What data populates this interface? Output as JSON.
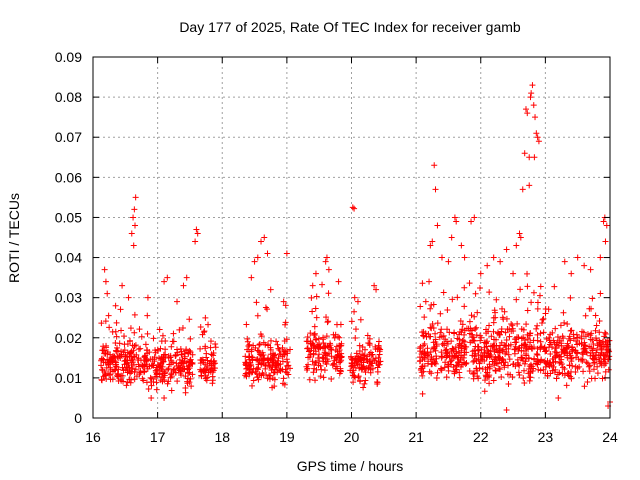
{
  "chart_data": {
    "type": "scatter",
    "title": "Day 177 of 2025, Rate Of TEC Index for receiver gamb",
    "xlabel": "GPS time / hours",
    "ylabel": "ROTI / TECUs",
    "xlim": [
      16,
      24
    ],
    "ylim": [
      0,
      0.09
    ],
    "x_ticks": [
      16,
      17,
      18,
      19,
      20,
      21,
      22,
      23,
      24
    ],
    "x_tick_labels": [
      "16",
      "17",
      "18",
      "19",
      "20",
      "21",
      "22",
      "23",
      "24"
    ],
    "y_ticks": [
      0,
      0.01,
      0.02,
      0.03,
      0.04,
      0.05,
      0.06,
      0.07,
      0.08,
      0.09
    ],
    "y_tick_labels": [
      "0",
      "0.01",
      "0.02",
      "0.03",
      "0.04",
      "0.05",
      "0.06",
      "0.07",
      "0.08",
      "0.09"
    ],
    "grid": true,
    "marker": "plus",
    "series": [
      {
        "name": "ROTI",
        "color": "#ff0000",
        "segments": [
          {
            "start": 16.12,
            "end": 17.55,
            "base": 0.013,
            "spread": 0.008
          },
          {
            "start": 17.65,
            "end": 17.9,
            "base": 0.013,
            "spread": 0.007
          },
          {
            "start": 18.35,
            "end": 19.05,
            "base": 0.014,
            "spread": 0.008
          },
          {
            "start": 19.3,
            "end": 19.85,
            "base": 0.016,
            "spread": 0.009
          },
          {
            "start": 19.98,
            "end": 20.45,
            "base": 0.014,
            "spread": 0.008
          },
          {
            "start": 21.05,
            "end": 24.0,
            "base": 0.016,
            "spread": 0.01
          }
        ],
        "points": [
          [
            16.18,
            0.037
          ],
          [
            16.2,
            0.034
          ],
          [
            16.22,
            0.031
          ],
          [
            16.35,
            0.028
          ],
          [
            16.45,
            0.033
          ],
          [
            16.55,
            0.03
          ],
          [
            16.6,
            0.046
          ],
          [
            16.62,
            0.05
          ],
          [
            16.64,
            0.052
          ],
          [
            16.66,
            0.055
          ],
          [
            16.63,
            0.043
          ],
          [
            16.65,
            0.048
          ],
          [
            16.85,
            0.03
          ],
          [
            17.1,
            0.034
          ],
          [
            17.15,
            0.035
          ],
          [
            17.3,
            0.029
          ],
          [
            17.4,
            0.033
          ],
          [
            17.45,
            0.035
          ],
          [
            17.6,
            0.047
          ],
          [
            17.62,
            0.046
          ],
          [
            17.58,
            0.044
          ],
          [
            18.45,
            0.035
          ],
          [
            18.5,
            0.039
          ],
          [
            18.55,
            0.04
          ],
          [
            18.6,
            0.044
          ],
          [
            18.65,
            0.045
          ],
          [
            18.7,
            0.041
          ],
          [
            18.75,
            0.032
          ],
          [
            18.95,
            0.029
          ],
          [
            19.0,
            0.041
          ],
          [
            19.4,
            0.033
          ],
          [
            19.45,
            0.036
          ],
          [
            19.6,
            0.039
          ],
          [
            19.62,
            0.04
          ],
          [
            19.65,
            0.037
          ],
          [
            19.8,
            0.034
          ],
          [
            20.02,
            0.0525
          ],
          [
            20.04,
            0.0522
          ],
          [
            20.05,
            0.03
          ],
          [
            20.1,
            0.029
          ],
          [
            20.35,
            0.033
          ],
          [
            20.38,
            0.032
          ],
          [
            21.15,
            0.029
          ],
          [
            21.2,
            0.034
          ],
          [
            21.22,
            0.043
          ],
          [
            21.25,
            0.044
          ],
          [
            21.28,
            0.063
          ],
          [
            21.3,
            0.057
          ],
          [
            21.33,
            0.048
          ],
          [
            21.4,
            0.04
          ],
          [
            21.5,
            0.039
          ],
          [
            21.55,
            0.045
          ],
          [
            21.6,
            0.05
          ],
          [
            21.62,
            0.049
          ],
          [
            21.7,
            0.043
          ],
          [
            21.75,
            0.04
          ],
          [
            21.85,
            0.049
          ],
          [
            21.9,
            0.05
          ],
          [
            22.0,
            0.036
          ],
          [
            22.1,
            0.038
          ],
          [
            22.2,
            0.04
          ],
          [
            22.3,
            0.039
          ],
          [
            22.4,
            0.042
          ],
          [
            22.5,
            0.036
          ],
          [
            22.55,
            0.043
          ],
          [
            22.6,
            0.046
          ],
          [
            22.62,
            0.045
          ],
          [
            22.65,
            0.057
          ],
          [
            22.68,
            0.066
          ],
          [
            22.7,
            0.077
          ],
          [
            22.72,
            0.076
          ],
          [
            22.75,
            0.065
          ],
          [
            22.77,
            0.08
          ],
          [
            22.78,
            0.081
          ],
          [
            22.8,
            0.083
          ],
          [
            22.82,
            0.078
          ],
          [
            22.84,
            0.075
          ],
          [
            22.86,
            0.071
          ],
          [
            22.88,
            0.07
          ],
          [
            22.9,
            0.069
          ],
          [
            22.83,
            0.065
          ],
          [
            22.75,
            0.058
          ],
          [
            23.3,
            0.039
          ],
          [
            23.4,
            0.036
          ],
          [
            23.5,
            0.04
          ],
          [
            23.6,
            0.038
          ],
          [
            23.7,
            0.037
          ],
          [
            23.85,
            0.04
          ],
          [
            23.9,
            0.049
          ],
          [
            23.92,
            0.05
          ],
          [
            23.95,
            0.048
          ],
          [
            23.93,
            0.044
          ],
          [
            23.97,
            0.003
          ],
          [
            24.0,
            0.004
          ],
          [
            22.4,
            0.002
          ],
          [
            23.2,
            0.005
          ],
          [
            21.1,
            0.006
          ],
          [
            17.1,
            0.005
          ],
          [
            16.9,
            0.005
          ]
        ]
      }
    ]
  }
}
